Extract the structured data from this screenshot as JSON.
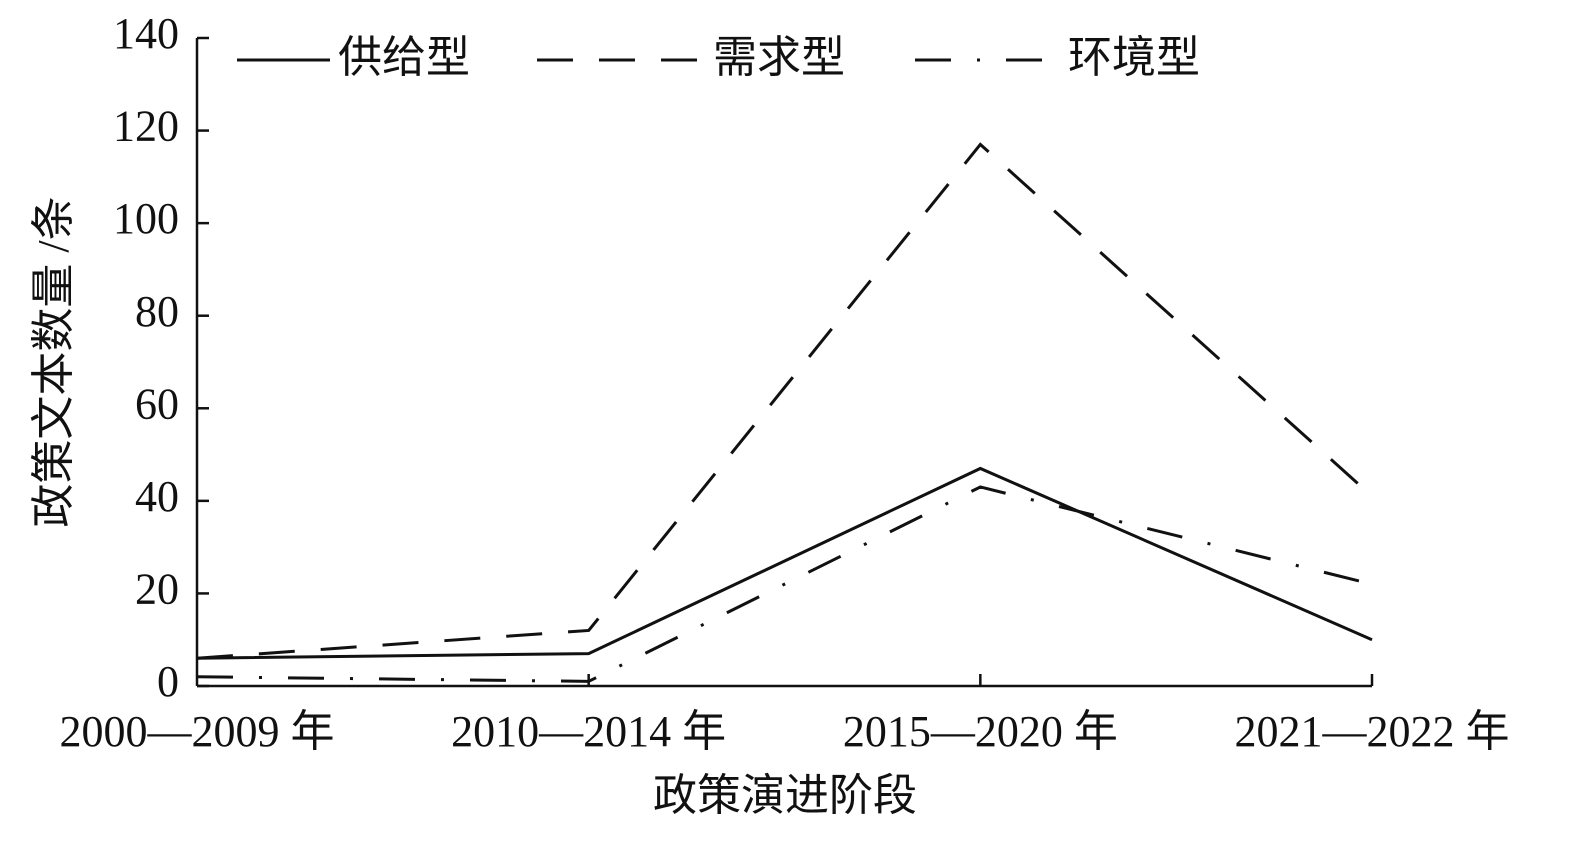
{
  "chart_data": {
    "type": "line",
    "x_label": "政策演进阶段",
    "y_label": "政策文本数量 /条",
    "categories": [
      "2000—2009 年",
      "2010—2014 年",
      "2015—2020 年",
      "2021—2022 年"
    ],
    "series": [
      {
        "name": "供给型",
        "color": "#111111",
        "dash": "solid",
        "values": [
          6,
          7,
          47,
          10
        ]
      },
      {
        "name": "需求型",
        "color": "#111111",
        "dash": "dashed",
        "values": [
          6,
          12,
          117,
          41
        ]
      },
      {
        "name": "环境型",
        "color": "#111111",
        "dash": "dashdot",
        "values": [
          2,
          1,
          43,
          22
        ]
      }
    ],
    "ylim": [
      0,
      140
    ],
    "yticks": [
      0,
      20,
      40,
      60,
      80,
      100,
      120,
      140
    ],
    "grid": false,
    "legend": "top"
  }
}
